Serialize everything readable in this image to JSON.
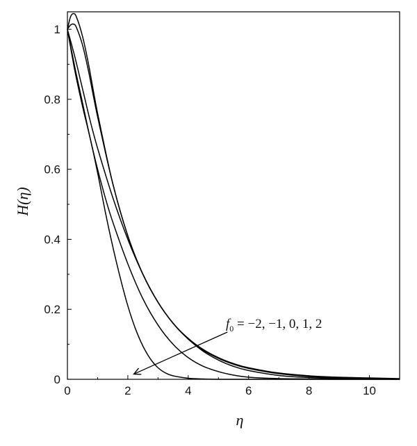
{
  "chart_data": {
    "type": "line",
    "title": "",
    "xlabel": "η",
    "ylabel": "H(η)",
    "xlim": [
      0,
      11
    ],
    "ylim": [
      0,
      1.05
    ],
    "grid": false,
    "legend": "none",
    "x_ticks": [
      0,
      2,
      4,
      6,
      8,
      10
    ],
    "x_tick_labels": [
      "0",
      "2",
      "4",
      "6",
      "8",
      "10"
    ],
    "y_ticks": [
      0,
      0.2,
      0.4,
      0.6,
      0.8,
      1
    ],
    "y_tick_labels": [
      "0",
      "0.2",
      "0.4",
      "0.6",
      "0.8",
      "1"
    ],
    "annotation": {
      "symbol": "f",
      "subscript": "0",
      "text": " = −2, −1, 0, 1, 2",
      "arrow_from": [
        5.3,
        0.135
      ],
      "arrow_to": [
        2.2,
        0.015
      ]
    },
    "line_color": "#000000",
    "series": [
      {
        "x": [
          0,
          0.1,
          0.2,
          0.3,
          0.5,
          0.7,
          1,
          1.5,
          2,
          2.5,
          3,
          3.5,
          4,
          4.5,
          5,
          5.5,
          6,
          7,
          8,
          9,
          10,
          11
        ],
        "values": [
          1,
          1.035,
          1.045,
          1.035,
          0.98,
          0.9,
          0.76,
          0.56,
          0.41,
          0.3,
          0.22,
          0.16,
          0.117,
          0.085,
          0.062,
          0.045,
          0.033,
          0.018,
          0.01,
          0.006,
          0.004,
          0.002
        ]
      },
      {
        "x": [
          0,
          0.1,
          0.2,
          0.3,
          0.5,
          0.7,
          1,
          1.5,
          2,
          2.5,
          3,
          3.5,
          4,
          4.5,
          5,
          5.5,
          6,
          7,
          8,
          9,
          10,
          11
        ],
        "values": [
          1,
          1.012,
          1.015,
          1.005,
          0.955,
          0.88,
          0.75,
          0.56,
          0.41,
          0.3,
          0.22,
          0.16,
          0.115,
          0.083,
          0.06,
          0.043,
          0.031,
          0.016,
          0.008,
          0.004,
          0.002,
          0.001
        ]
      },
      {
        "x": [
          0,
          0.25,
          0.5,
          0.75,
          1,
          1.5,
          2,
          2.5,
          3,
          3.5,
          4,
          4.5,
          5,
          5.5,
          6,
          7,
          8,
          9,
          10,
          11
        ],
        "values": [
          1,
          0.92,
          0.83,
          0.74,
          0.66,
          0.52,
          0.4,
          0.3,
          0.22,
          0.16,
          0.115,
          0.08,
          0.055,
          0.037,
          0.025,
          0.011,
          0.005,
          0.002,
          0.001,
          0
        ]
      },
      {
        "x": [
          0,
          0.25,
          0.5,
          0.75,
          1,
          1.25,
          1.5,
          2,
          2.5,
          3,
          3.5,
          4,
          4.5,
          5,
          5.5,
          6,
          7,
          8,
          9,
          11
        ],
        "values": [
          1,
          0.89,
          0.79,
          0.69,
          0.6,
          0.52,
          0.45,
          0.33,
          0.23,
          0.155,
          0.1,
          0.062,
          0.037,
          0.022,
          0.012,
          0.006,
          0.002,
          0.001,
          0,
          0
        ]
      },
      {
        "x": [
          0,
          0.25,
          0.5,
          0.75,
          1,
          1.25,
          1.5,
          1.75,
          2,
          2.25,
          2.5,
          2.75,
          3,
          3.25,
          3.5,
          4,
          4.5,
          5,
          6,
          7,
          11
        ],
        "values": [
          1,
          0.88,
          0.78,
          0.69,
          0.59,
          0.48,
          0.38,
          0.29,
          0.21,
          0.145,
          0.095,
          0.058,
          0.033,
          0.018,
          0.01,
          0.003,
          0.001,
          0,
          0,
          0,
          0
        ]
      }
    ]
  }
}
